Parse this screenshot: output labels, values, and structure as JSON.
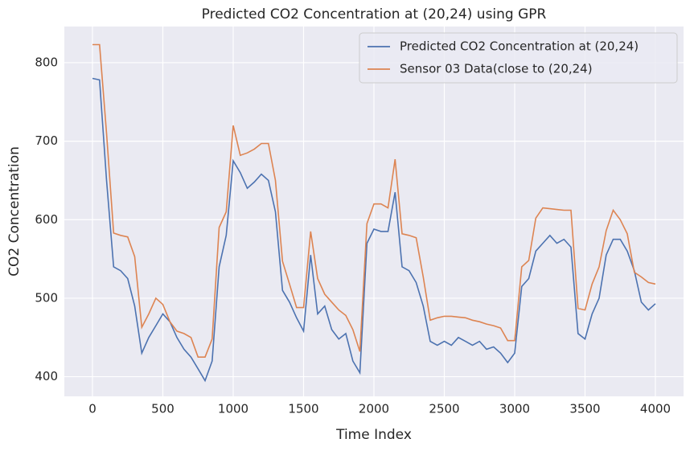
{
  "chart_data": {
    "type": "line",
    "title": "Predicted CO2 Concentration at (20,24) using GPR",
    "x_label": "Time Index",
    "y_label": "CO2 Concentration",
    "x": [
      0,
      50,
      100,
      150,
      200,
      250,
      300,
      350,
      400,
      450,
      500,
      550,
      600,
      650,
      700,
      750,
      800,
      850,
      900,
      950,
      1000,
      1050,
      1100,
      1150,
      1200,
      1250,
      1300,
      1350,
      1400,
      1450,
      1500,
      1550,
      1600,
      1650,
      1700,
      1750,
      1800,
      1850,
      1900,
      1950,
      2000,
      2050,
      2100,
      2150,
      2200,
      2250,
      2300,
      2350,
      2400,
      2450,
      2500,
      2550,
      2600,
      2650,
      2700,
      2750,
      2800,
      2850,
      2900,
      2950,
      3000,
      3050,
      3100,
      3150,
      3200,
      3250,
      3300,
      3350,
      3400,
      3450,
      3500,
      3550,
      3600,
      3650,
      3700,
      3750,
      3800,
      3850,
      3900,
      3950,
      4000
    ],
    "series": [
      {
        "name": "Predicted CO2 Concentration at (20,24)",
        "color": "#4c72b0",
        "values": [
          780,
          778,
          650,
          540,
          535,
          525,
          490,
          430,
          450,
          465,
          480,
          470,
          450,
          435,
          425,
          410,
          395,
          420,
          540,
          580,
          675,
          660,
          640,
          648,
          658,
          650,
          610,
          510,
          495,
          475,
          458,
          555,
          480,
          490,
          460,
          448,
          455,
          420,
          405,
          570,
          588,
          585,
          585,
          635,
          540,
          535,
          520,
          490,
          445,
          440,
          445,
          440,
          450,
          445,
          440,
          445,
          435,
          438,
          430,
          418,
          430,
          515,
          525,
          560,
          570,
          580,
          570,
          575,
          565,
          455,
          448,
          480,
          500,
          555,
          575,
          575,
          560,
          535,
          495,
          485,
          493
        ]
      },
      {
        "name": "Sensor 03 Data(close to (20,24)",
        "color": "#dd8452",
        "values": [
          823,
          823,
          710,
          583,
          580,
          578,
          553,
          463,
          480,
          500,
          492,
          470,
          458,
          455,
          450,
          425,
          425,
          448,
          590,
          610,
          720,
          682,
          685,
          690,
          697,
          697,
          650,
          547,
          518,
          488,
          488,
          585,
          525,
          505,
          495,
          485,
          478,
          460,
          432,
          595,
          620,
          620,
          615,
          677,
          582,
          580,
          577,
          527,
          472,
          475,
          477,
          477,
          476,
          475,
          472,
          470,
          467,
          465,
          462,
          446,
          446,
          540,
          548,
          602,
          615,
          614,
          613,
          612,
          612,
          487,
          485,
          518,
          540,
          586,
          612,
          600,
          582,
          533,
          527,
          520,
          518
        ]
      }
    ],
    "xlim": [
      -200,
      4200
    ],
    "ylim": [
      375,
      846
    ],
    "xticks": [
      0,
      500,
      1000,
      1500,
      2000,
      2500,
      3000,
      3500,
      4000
    ],
    "yticks": [
      400,
      500,
      600,
      700,
      800
    ],
    "grid": true,
    "legend": "upper right"
  }
}
